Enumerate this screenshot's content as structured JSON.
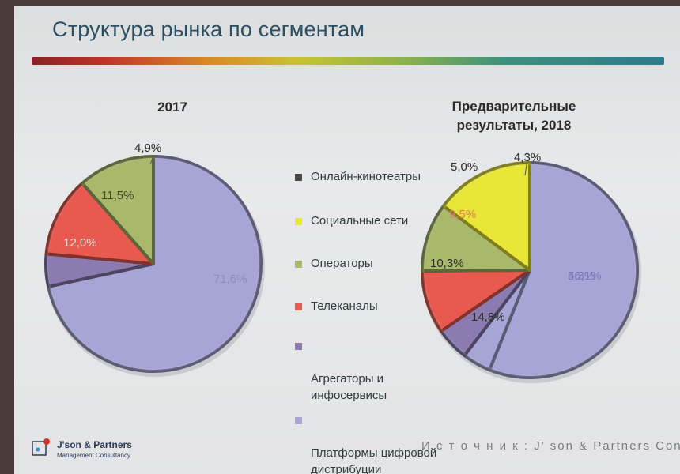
{
  "slide": {
    "title": "Структура рынка по сегментам",
    "source": "И с т о ч н и к : J' son & Partners Consultin"
  },
  "logo": {
    "name": "J'son & Partners",
    "subtitle": "Management Consultancy"
  },
  "legend": [
    {
      "label": "Онлайн-кинотеатры",
      "color": "#4a4a4a"
    },
    {
      "label": "Социальные сети",
      "color": "#e8e636"
    },
    {
      "label": "Операторы",
      "color": "#a9b86a"
    },
    {
      "label": "Телеканалы",
      "color": "#e85a4f"
    },
    {
      "label": "Агрегаторы и\nинфосервисы",
      "color": "#8b7bb0"
    },
    {
      "label": "Платформы цифровой\nдистрибуции",
      "color": "#a7a5d6"
    }
  ],
  "chart_data": [
    {
      "type": "pie",
      "title": "2017",
      "slices": [
        {
          "label": "Онлайн-кинотеатры",
          "value": 0,
          "value_label": "",
          "color": "#4a4a4a"
        },
        {
          "label": "Социальные сети",
          "value": 0,
          "value_label": "",
          "color": "#e8e636"
        },
        {
          "label": "Операторы",
          "value": 11.5,
          "value_label": "11,5%",
          "color": "#a9b86a"
        },
        {
          "label": "Телеканалы",
          "value": 12.0,
          "value_label": "12,0%",
          "color": "#e85a4f"
        },
        {
          "label": "Агрегаторы и инфосервисы",
          "value": 4.9,
          "value_label": "4,9%",
          "color": "#8b7bb0"
        },
        {
          "label": "Платформы цифровой дистрибуции",
          "value": 71.6,
          "value_label": "71,6%",
          "color": "#a7a5d6"
        }
      ]
    },
    {
      "type": "pie",
      "title": "Предварительные\nрезультаты, 2018",
      "slices": [
        {
          "label": "Онлайн-кинотеатры",
          "value": 0,
          "value_label": "",
          "color": "#4a4a4a"
        },
        {
          "label": "Социальные сети",
          "value": 14.8,
          "value_label": "14,8%",
          "color": "#e8e636"
        },
        {
          "label": "Операторы",
          "value": 10.3,
          "value_label": "10,3%",
          "color": "#a9b86a"
        },
        {
          "label": "Телеканалы",
          "value": 9.5,
          "value_label": "9,5%",
          "color": "#e85a4f"
        },
        {
          "label": "Агрегаторы и инфосервисы",
          "value": 5.0,
          "value_label": "5,0%",
          "color": "#8b7bb0"
        },
        {
          "label": "Платформы цифровой дистрибуции",
          "value": 4.3,
          "value_label": "4,3%",
          "color": "#a7a5d6"
        },
        {
          "label": "Платформы цифровой дистрибуции",
          "value": 56.1,
          "value_label": "56,1%",
          "color": "#a7a5d6"
        }
      ]
    }
  ]
}
